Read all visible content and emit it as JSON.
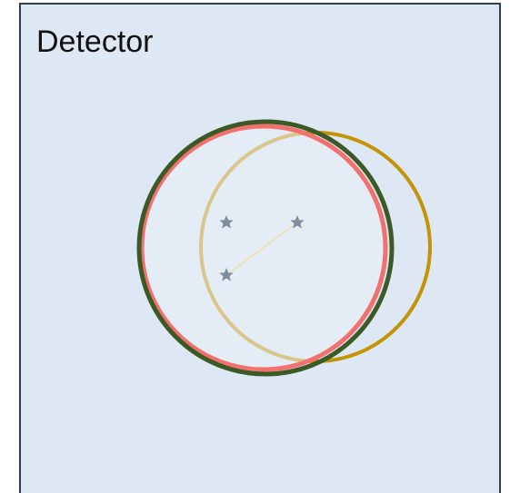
{
  "label": "Detector"
}
